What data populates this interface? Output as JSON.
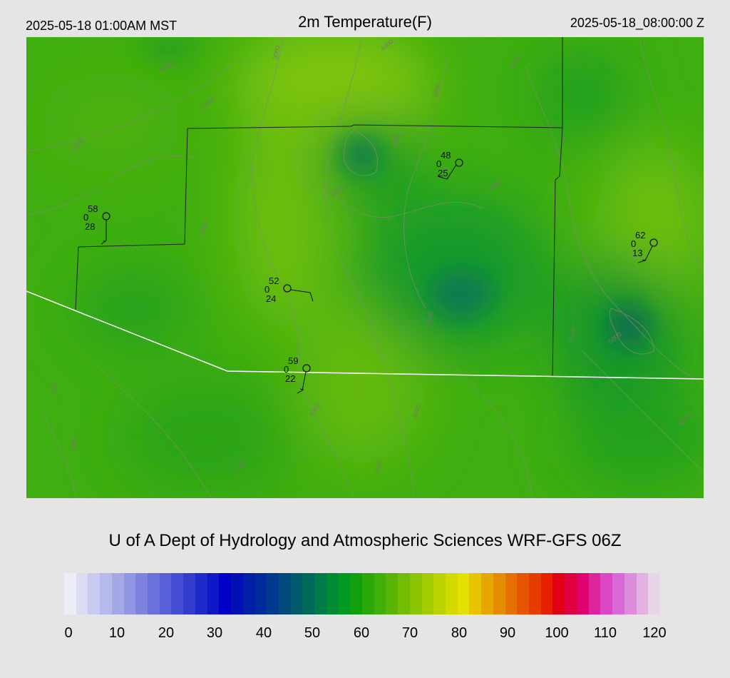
{
  "header": {
    "local_time": "2025-05-18 01:00AM MST",
    "title": "2m Temperature(F)",
    "valid_time": "2025-05-18_08:00:00 Z"
  },
  "credit": "U of A Dept of Hydrology and Atmospheric Sciences WRF-GFS 06Z",
  "colorbar": {
    "ticks": [
      "0",
      "10",
      "20",
      "30",
      "40",
      "50",
      "60",
      "70",
      "80",
      "90",
      "100",
      "110",
      "120"
    ],
    "colors": [
      "#ecedf7",
      "#dadcf3",
      "#c8cbef",
      "#b6b9eb",
      "#a4a8e7",
      "#9196e3",
      "#7d83df",
      "#6b71db",
      "#5860d7",
      "#454ed2",
      "#323ccd",
      "#1f2acb",
      "#0d18c8",
      "#0000c8",
      "#0010b4",
      "#0020a8",
      "#002b9c",
      "#003a8c",
      "#004a7c",
      "#005a6c",
      "#006a5a",
      "#007a48",
      "#008a34",
      "#009a20",
      "#11a00c",
      "#2aa80a",
      "#42ae08",
      "#5ab406",
      "#72bc04",
      "#8ac402",
      "#a2cc00",
      "#bad200",
      "#d2da00",
      "#e6e000",
      "#e6c400",
      "#e6a800",
      "#e68c00",
      "#e67000",
      "#e65600",
      "#e63c00",
      "#e62000",
      "#e00012",
      "#e00040",
      "#e0006e",
      "#de249a",
      "#dc48c4",
      "#d86ad8",
      "#dc8edc",
      "#e2b2e2",
      "#e8d6e8"
    ]
  },
  "map": {
    "stations": [
      {
        "temp": "58",
        "wind": "0",
        "dew": "28"
      },
      {
        "temp": "48",
        "wind": "0",
        "dew": "25"
      },
      {
        "temp": "52",
        "wind": "0",
        "dew": "24"
      },
      {
        "temp": "59",
        "wind": "0",
        "dew": "22"
      },
      {
        "temp": "62",
        "wind": "0",
        "dew": "13"
      }
    ],
    "contour_labels": [
      "4000",
      "3000",
      "3500",
      "4000",
      "3500",
      "4500",
      "5000",
      "5500",
      "4500",
      "5000",
      "4500",
      "5500",
      "4000",
      "4500",
      "5000",
      "4000",
      "4500",
      "4000",
      "3500",
      "4500",
      "5000",
      "5500"
    ]
  }
}
